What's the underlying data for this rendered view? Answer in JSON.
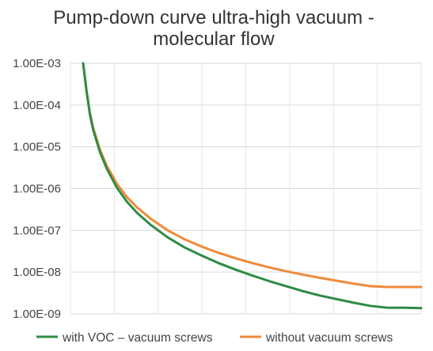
{
  "chart_data": {
    "type": "line",
    "title": "Pump-down curve ultra-high vacuum - molecular flow",
    "title_lines": [
      "Pump-down curve ultra-high vacuum -",
      "molecular flow"
    ],
    "xlabel": "",
    "ylabel": "",
    "y_scale": "log",
    "ylim": [
      1e-09,
      0.001
    ],
    "y_ticks": [
      0.001,
      0.0001,
      1e-05,
      1e-06,
      1e-07,
      1e-08,
      1e-09
    ],
    "y_tick_labels": [
      "1.00E-03",
      "1.00E-04",
      "1.00E-05",
      "1.00E-06",
      "1.00E-07",
      "1.00E-08",
      "1.00E-09"
    ],
    "x_tick_labels_visible": false,
    "grid": {
      "horizontal": true,
      "vertical": true
    },
    "legend_position": "bottom",
    "series": [
      {
        "name": "with VOC – vacuum screws",
        "color": "#2e8b45",
        "x": [
          0,
          0.01,
          0.02,
          0.03,
          0.05,
          0.07,
          0.1,
          0.13,
          0.16,
          0.2,
          0.25,
          0.3,
          0.35,
          0.4,
          0.45,
          0.5,
          0.55,
          0.6,
          0.65,
          0.7,
          0.75,
          0.8,
          0.85,
          0.9,
          0.95,
          1.0
        ],
        "values": [
          0.001,
          0.00022,
          6e-05,
          2.5e-05,
          7.4e-06,
          3e-06,
          1.05e-06,
          4.8e-07,
          2.6e-07,
          1.35e-07,
          6.8e-08,
          3.9e-08,
          2.5e-08,
          1.65e-08,
          1.15e-08,
          8.3e-09,
          6.1e-09,
          4.6e-09,
          3.5e-09,
          2.75e-09,
          2.25e-09,
          1.85e-09,
          1.55e-09,
          1.4e-09,
          1.4e-09,
          1.37e-09
        ]
      },
      {
        "name": "without vacuum screws",
        "color": "#ef8a3a",
        "x": [
          0,
          0.01,
          0.02,
          0.03,
          0.05,
          0.07,
          0.1,
          0.13,
          0.16,
          0.2,
          0.25,
          0.3,
          0.35,
          0.4,
          0.45,
          0.5,
          0.55,
          0.6,
          0.65,
          0.7,
          0.75,
          0.8,
          0.85,
          0.9,
          0.95,
          1.0
        ],
        "values": [
          0.001,
          0.00022,
          6.5e-05,
          2.8e-05,
          8.5e-06,
          3.5e-06,
          1.3e-06,
          6.2e-07,
          3.5e-07,
          1.9e-07,
          1e-07,
          6.1e-08,
          4.1e-08,
          2.9e-08,
          2.15e-08,
          1.65e-08,
          1.3e-08,
          1.05e-08,
          8.7e-09,
          7.3e-09,
          6.2e-09,
          5.3e-09,
          4.6e-09,
          4.4e-09,
          4.4e-09,
          4.4e-09
        ]
      }
    ]
  }
}
